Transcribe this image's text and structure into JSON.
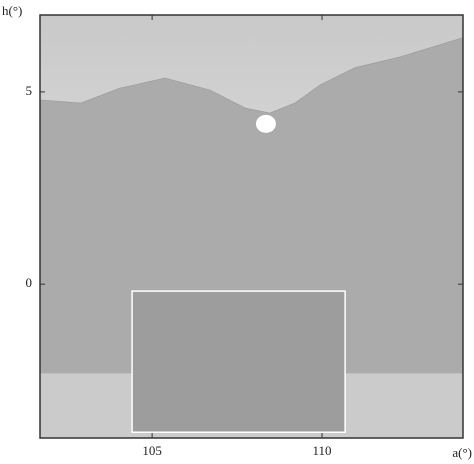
{
  "chart_data": {
    "type": "horizon",
    "xlabel": "a(°)",
    "ylabel": "h(°)",
    "xlim": [
      101.7,
      114.15
    ],
    "ylim": [
      -4.0,
      7.0
    ],
    "xticks": [
      105,
      110
    ],
    "yticks": [
      0,
      5
    ],
    "horizon": {
      "color": "#ababab",
      "x": [
        101.7,
        102.9,
        104.06,
        105.38,
        106.7,
        107.74,
        108.47,
        109.2,
        109.94,
        110.97,
        112.3,
        114.15
      ],
      "values": [
        4.79,
        4.71,
        5.1,
        5.36,
        5.05,
        4.58,
        4.45,
        4.71,
        5.18,
        5.63,
        5.91,
        6.41
      ]
    },
    "sun": {
      "x": 108.35,
      "y": 4.17,
      "color": "#ffffff"
    },
    "ground_level": -2.32,
    "ground_color": "#cbcbcb",
    "block": {
      "x": [
        104.41,
        110.68
      ],
      "y": [
        -3.85,
        -0.18
      ],
      "color": "#9d9d9d"
    }
  }
}
